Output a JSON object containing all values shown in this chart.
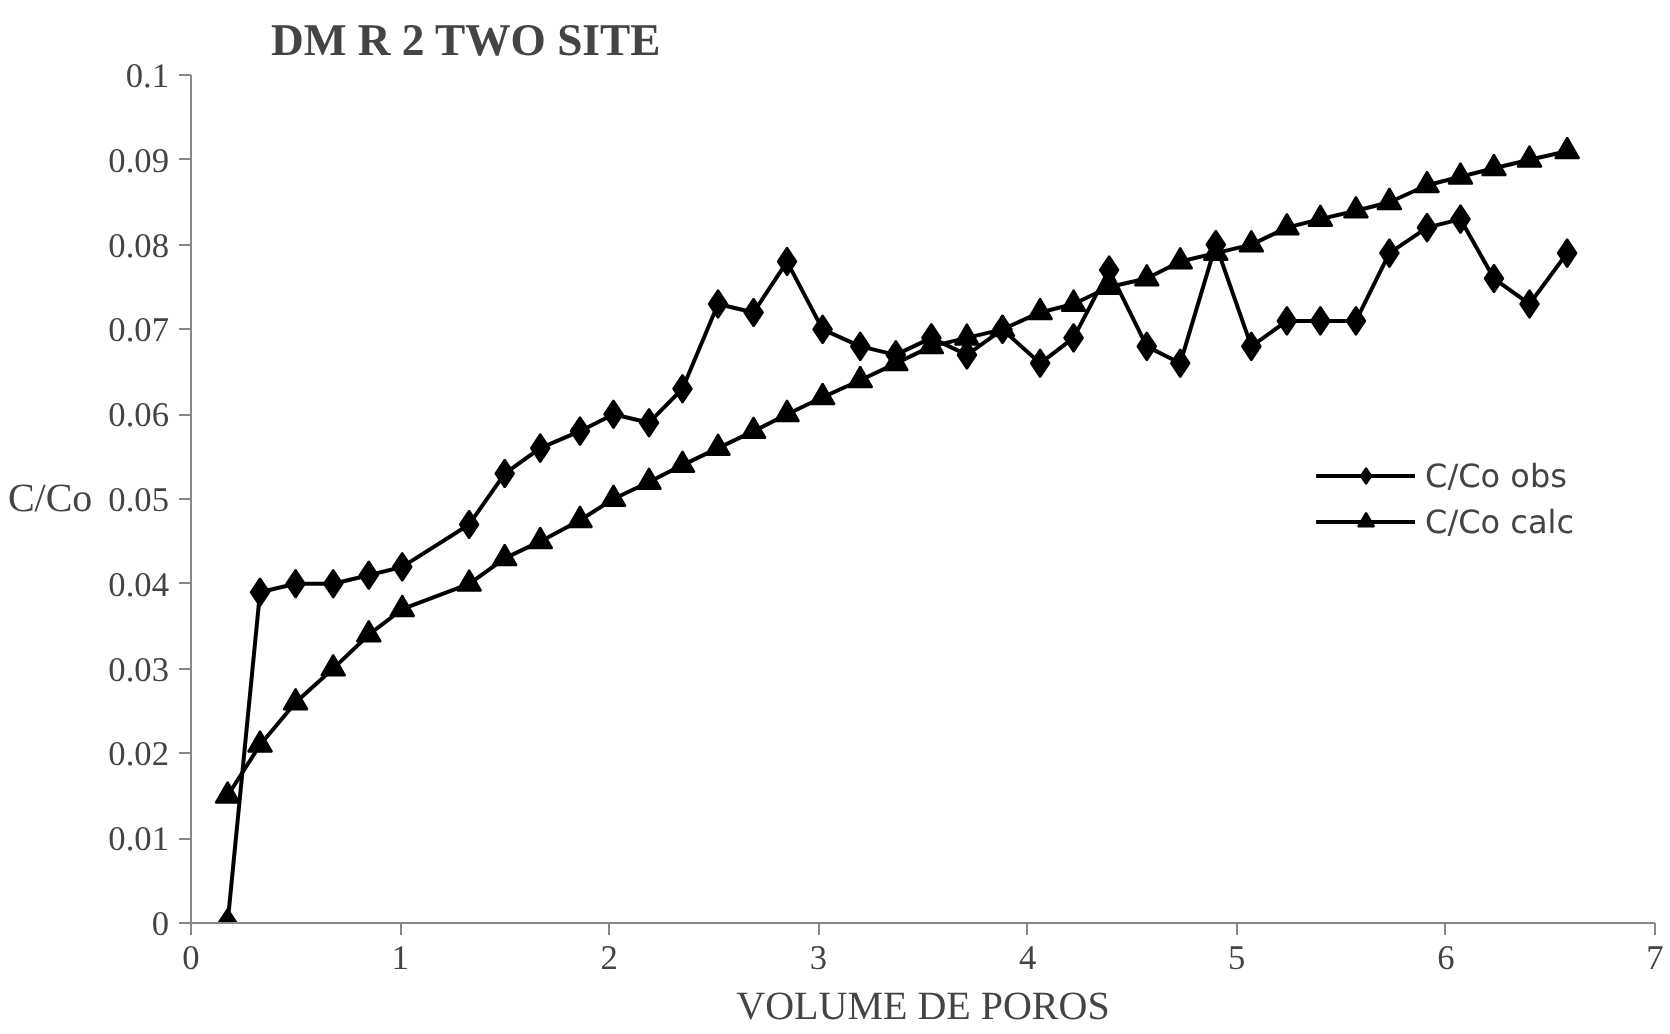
{
  "chart_data": {
    "type": "line",
    "title": "DM R 2 TWO SITE",
    "xlabel": "VOLUME DE POROS",
    "ylabel": "C/Co",
    "x": [
      0.175,
      0.33,
      0.5,
      0.68,
      0.85,
      1.01,
      1.33,
      1.5,
      1.67,
      1.86,
      2.02,
      2.19,
      2.35,
      2.52,
      2.69,
      2.85,
      3.02,
      3.2,
      3.37,
      3.54,
      3.71,
      3.88,
      4.06,
      4.22,
      4.39,
      4.57,
      4.73,
      4.9,
      5.07,
      5.24,
      5.4,
      5.57,
      5.73,
      5.91,
      6.07,
      6.23,
      6.4,
      6.58
    ],
    "series": [
      {
        "name": "C/Co obs",
        "color": "#000000",
        "marker": "diamond",
        "values": [
          0,
          0.039,
          0.04,
          0.04,
          0.041,
          0.042,
          0.047,
          0.053,
          0.056,
          0.058,
          0.06,
          0.059,
          0.063,
          0.073,
          0.072,
          0.078,
          0.07,
          0.068,
          0.067,
          0.069,
          0.067,
          0.07,
          0.066,
          0.069,
          0.077,
          0.068,
          0.066,
          0.08,
          0.068,
          0.071,
          0.071,
          0.071,
          0.079,
          0.082,
          0.083,
          0.076,
          0.073,
          0.079
        ]
      },
      {
        "name": "C/Co calc",
        "color": "#000000",
        "marker": "triangle",
        "values": [
          0.015,
          0.021,
          0.026,
          0.03,
          0.034,
          0.037,
          0.04,
          0.043,
          0.045,
          0.0475,
          0.05,
          0.052,
          0.054,
          0.056,
          0.058,
          0.06,
          0.062,
          0.064,
          0.066,
          0.068,
          0.069,
          0.07,
          0.072,
          0.073,
          0.075,
          0.076,
          0.078,
          0.079,
          0.08,
          0.082,
          0.083,
          0.084,
          0.085,
          0.087,
          0.088,
          0.089,
          0.09,
          0.091
        ]
      }
    ],
    "xlim": [
      0,
      7
    ],
    "xticks": [
      0,
      1,
      2,
      3,
      4,
      5,
      6,
      7
    ],
    "ylim": [
      0,
      0.1
    ],
    "yticks": [
      0,
      0.01,
      0.02,
      0.03,
      0.04,
      0.05,
      0.06,
      0.07,
      0.08,
      0.09,
      0.1
    ],
    "grid": false,
    "legend": "right",
    "line_style": "solid"
  }
}
